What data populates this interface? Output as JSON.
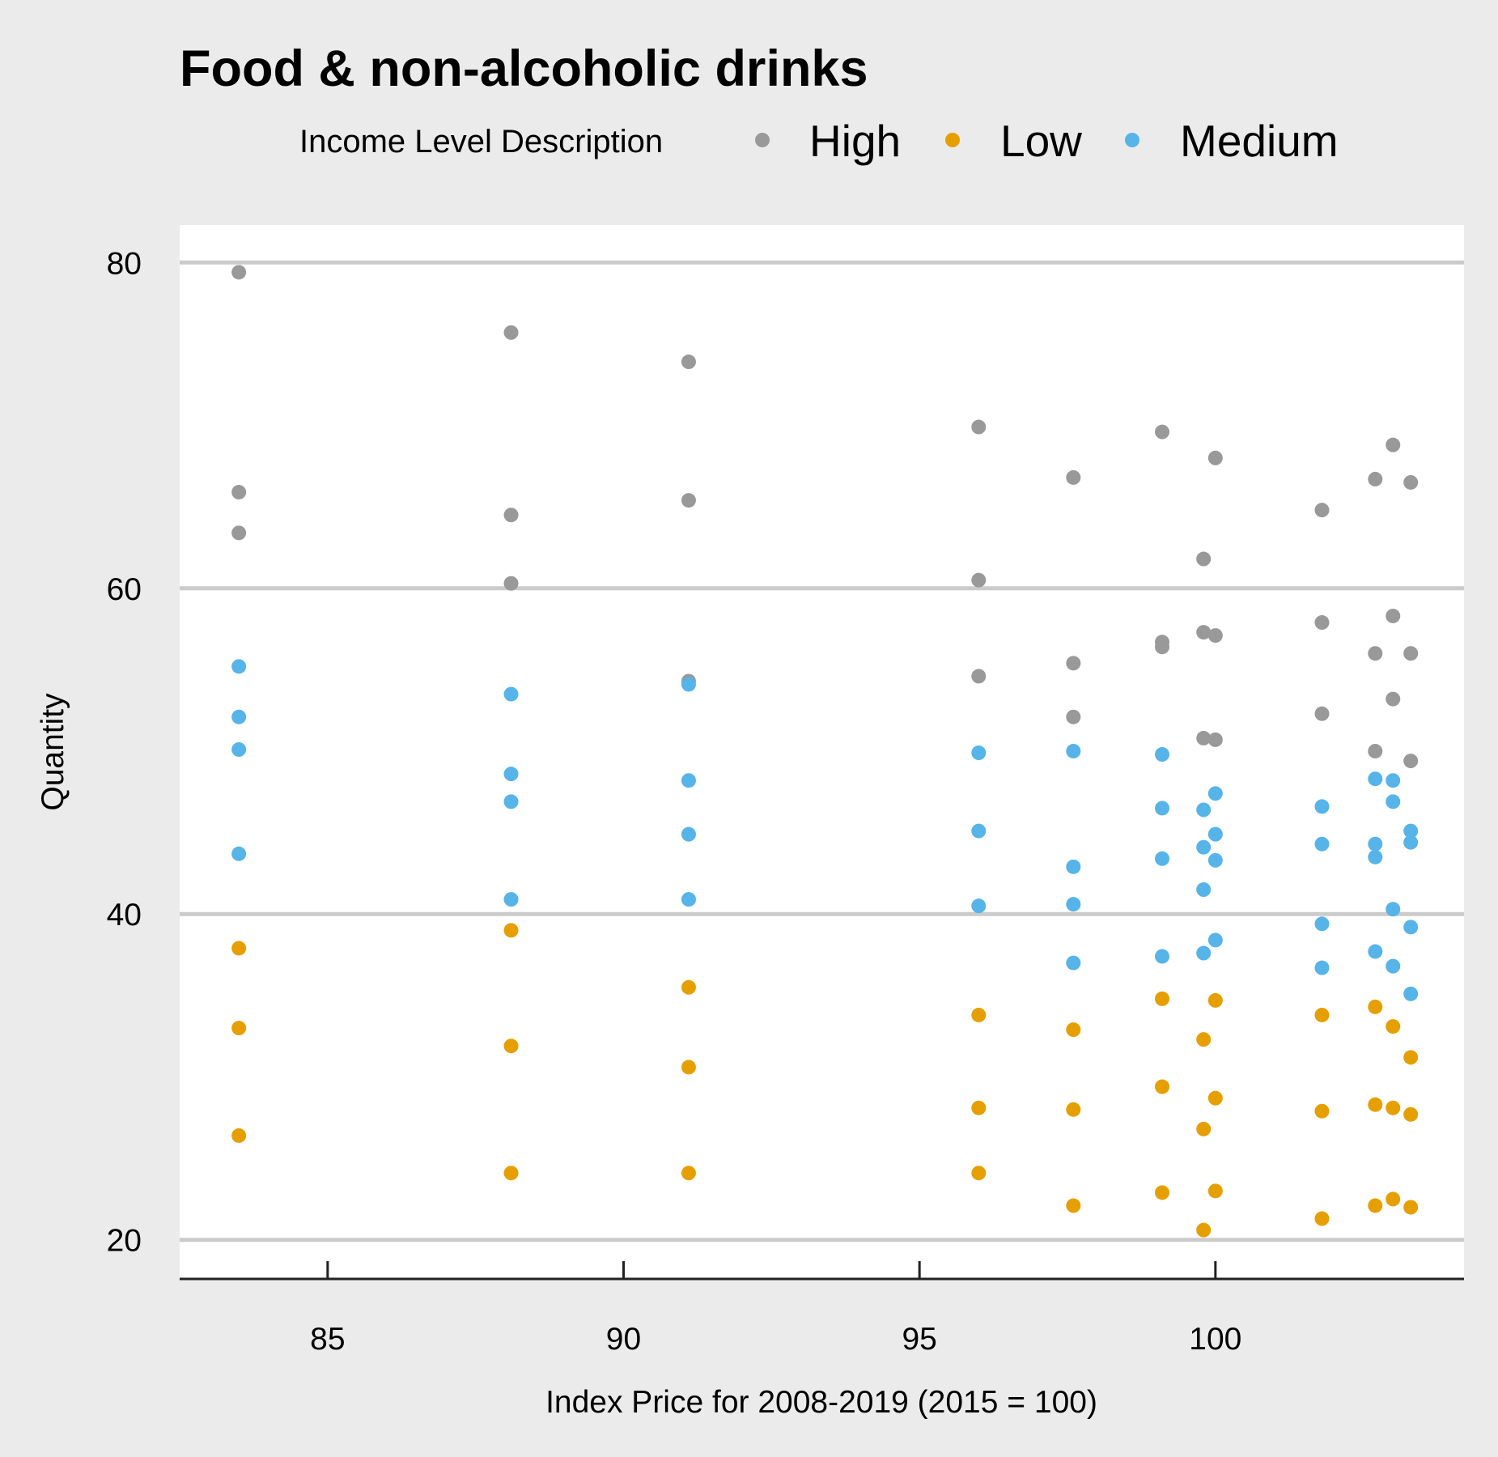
{
  "chart_data": {
    "type": "scatter",
    "title": "Food & non-alcoholic drinks",
    "xlabel": "Index Price for 2008-2019 (2015 = 100)",
    "ylabel": "Quantity",
    "xlim": [
      82.5,
      104.2
    ],
    "ylim": [
      17.6,
      82.3
    ],
    "x_ticks": [
      85,
      90,
      95,
      100
    ],
    "y_ticks": [
      20,
      40,
      60,
      80
    ],
    "grid": "horizontal major lines",
    "legend": {
      "title": "Income Level Description",
      "position": "top",
      "entries": [
        "High",
        "Low",
        "Medium"
      ]
    },
    "colors": {
      "High": "#999999",
      "Low": "#E69F00",
      "Medium": "#56B4E9",
      "panel": "#ffffff",
      "background": "#ebebeb"
    },
    "series": [
      {
        "name": "High",
        "points": [
          [
            83.5,
            79.4
          ],
          [
            83.5,
            65.9
          ],
          [
            83.5,
            63.4
          ],
          [
            88.1,
            75.7
          ],
          [
            88.1,
            64.5
          ],
          [
            88.1,
            60.3
          ],
          [
            91.1,
            73.9
          ],
          [
            91.1,
            65.4
          ],
          [
            91.1,
            54.3
          ],
          [
            96.0,
            69.9
          ],
          [
            96.0,
            60.5
          ],
          [
            96.0,
            54.6
          ],
          [
            97.6,
            66.8
          ],
          [
            97.6,
            55.4
          ],
          [
            97.6,
            52.1
          ],
          [
            99.1,
            69.6
          ],
          [
            99.1,
            56.7
          ],
          [
            99.1,
            56.4
          ],
          [
            99.8,
            61.8
          ],
          [
            99.8,
            57.3
          ],
          [
            99.8,
            50.8
          ],
          [
            100.0,
            68.0
          ],
          [
            100.0,
            57.1
          ],
          [
            100.0,
            50.7
          ],
          [
            101.8,
            64.8
          ],
          [
            101.8,
            57.9
          ],
          [
            101.8,
            52.3
          ],
          [
            102.7,
            66.7
          ],
          [
            102.7,
            56.0
          ],
          [
            102.7,
            50.0
          ],
          [
            103.0,
            68.8
          ],
          [
            103.0,
            58.3
          ],
          [
            103.0,
            53.2
          ],
          [
            103.3,
            66.5
          ],
          [
            103.3,
            56.0
          ],
          [
            103.3,
            49.4
          ]
        ]
      },
      {
        "name": "Low",
        "points": [
          [
            83.5,
            37.9
          ],
          [
            83.5,
            33.0
          ],
          [
            83.5,
            26.4
          ],
          [
            88.1,
            39.0
          ],
          [
            88.1,
            31.9
          ],
          [
            88.1,
            24.1
          ],
          [
            91.1,
            35.5
          ],
          [
            91.1,
            30.6
          ],
          [
            91.1,
            24.1
          ],
          [
            96.0,
            33.8
          ],
          [
            96.0,
            28.1
          ],
          [
            96.0,
            24.1
          ],
          [
            97.6,
            32.9
          ],
          [
            97.6,
            28.0
          ],
          [
            97.6,
            22.1
          ],
          [
            99.1,
            34.8
          ],
          [
            99.1,
            29.4
          ],
          [
            99.1,
            22.9
          ],
          [
            99.8,
            32.3
          ],
          [
            99.8,
            26.8
          ],
          [
            99.8,
            20.6
          ],
          [
            100.0,
            34.7
          ],
          [
            100.0,
            28.7
          ],
          [
            100.0,
            23.0
          ],
          [
            101.8,
            33.8
          ],
          [
            101.8,
            27.9
          ],
          [
            101.8,
            21.3
          ],
          [
            102.7,
            34.3
          ],
          [
            102.7,
            28.3
          ],
          [
            102.7,
            22.1
          ],
          [
            103.0,
            33.1
          ],
          [
            103.0,
            28.1
          ],
          [
            103.0,
            22.5
          ],
          [
            103.3,
            31.2
          ],
          [
            103.3,
            27.7
          ],
          [
            103.3,
            22.0
          ]
        ]
      },
      {
        "name": "Medium",
        "points": [
          [
            83.5,
            55.2
          ],
          [
            83.5,
            52.1
          ],
          [
            83.5,
            50.1
          ],
          [
            83.5,
            43.7
          ],
          [
            88.1,
            53.5
          ],
          [
            88.1,
            48.6
          ],
          [
            88.1,
            46.9
          ],
          [
            88.1,
            40.9
          ],
          [
            91.1,
            54.1
          ],
          [
            91.1,
            48.2
          ],
          [
            91.1,
            44.9
          ],
          [
            91.1,
            40.9
          ],
          [
            96.0,
            49.9
          ],
          [
            96.0,
            45.1
          ],
          [
            96.0,
            40.5
          ],
          [
            97.6,
            50.0
          ],
          [
            97.6,
            42.9
          ],
          [
            97.6,
            40.6
          ],
          [
            97.6,
            37.0
          ],
          [
            99.1,
            49.8
          ],
          [
            99.1,
            46.5
          ],
          [
            99.1,
            43.4
          ],
          [
            99.1,
            37.4
          ],
          [
            99.8,
            46.4
          ],
          [
            99.8,
            44.1
          ],
          [
            99.8,
            41.5
          ],
          [
            99.8,
            37.6
          ],
          [
            100.0,
            47.4
          ],
          [
            100.0,
            44.9
          ],
          [
            100.0,
            43.3
          ],
          [
            100.0,
            38.4
          ],
          [
            101.8,
            46.6
          ],
          [
            101.8,
            44.3
          ],
          [
            101.8,
            39.4
          ],
          [
            101.8,
            36.7
          ],
          [
            102.7,
            48.3
          ],
          [
            102.7,
            44.3
          ],
          [
            102.7,
            43.5
          ],
          [
            102.7,
            37.7
          ],
          [
            103.0,
            48.2
          ],
          [
            103.0,
            46.9
          ],
          [
            103.0,
            40.3
          ],
          [
            103.0,
            36.8
          ],
          [
            103.3,
            45.1
          ],
          [
            103.3,
            44.4
          ],
          [
            103.3,
            39.2
          ],
          [
            103.3,
            35.1
          ]
        ]
      }
    ]
  }
}
